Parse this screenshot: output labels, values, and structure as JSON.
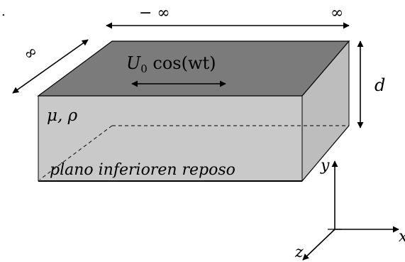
{
  "top_arrow": {
    "left_label": "− ∞",
    "right_label": "∞"
  },
  "depth_arrow": {
    "label": "∞"
  },
  "height_arrow": {
    "label": "d"
  },
  "top_plate": {
    "velocity_label": "U",
    "velocity_sub": "0",
    "velocity_expr": " cos(wt)"
  },
  "fluid": {
    "properties_label": "μ, ρ"
  },
  "bottom_plate": {
    "label": "plano inferioren reposo"
  },
  "axes": {
    "y_label": "y",
    "x_label": "x",
    "z_label": "z"
  },
  "stray_mark": "."
}
